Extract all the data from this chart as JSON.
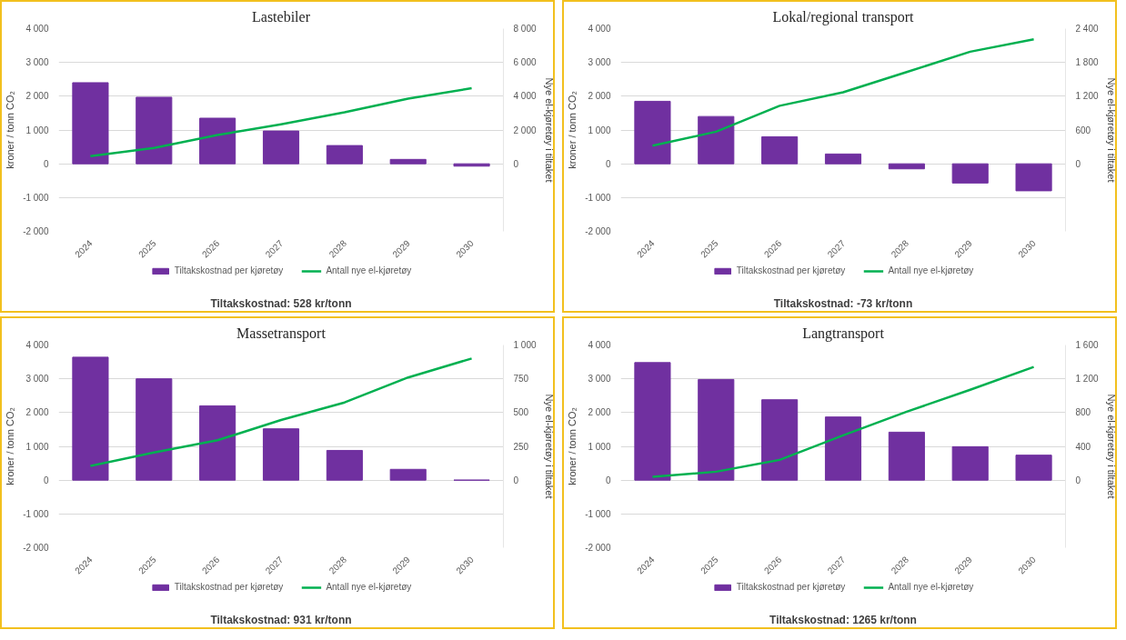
{
  "chart_data": [
    {
      "type": "bar",
      "title": "Lastebiler",
      "categories": [
        "2024",
        "2025",
        "2026",
        "2027",
        "2028",
        "2029",
        "2030"
      ],
      "ylabel": "kroner / tonn CO₂",
      "y2label": "Nye el-kjøretøy i tiltaket",
      "ylim": [
        -2000,
        4000
      ],
      "yticks": [
        {
          "value": -2000,
          "label": "-2 000"
        },
        {
          "value": -1000,
          "label": "-1 000"
        },
        0,
        {
          "value": 1000,
          "label": "1 000"
        },
        {
          "value": 2000,
          "label": "2 000"
        },
        {
          "value": 3000,
          "label": "3 000"
        },
        {
          "value": 4000,
          "label": "4 000"
        }
      ],
      "y2lim": [
        -4000,
        8000
      ],
      "y2ticks": [
        0,
        {
          "value": 2000,
          "label": "2 000"
        },
        {
          "value": 4000,
          "label": "4 000"
        },
        {
          "value": 6000,
          "label": "6 000"
        },
        {
          "value": 8000,
          "label": "8 000"
        }
      ],
      "grid": "y",
      "legend": "bottom",
      "annotations": [
        "Tiltakskostnad: 528 kr/tonn"
      ],
      "series": [
        {
          "name": "Tiltakskostnad per kjøretøy",
          "color": "#7030a0",
          "values": [
            2400,
            1970,
            1350,
            970,
            540,
            130,
            -70
          ]
        },
        {
          "name": "Antall nye el-kjøretøy",
          "type": "line",
          "axis": "y2",
          "color": "#00b050",
          "values": [
            450,
            940,
            1700,
            2340,
            3050,
            3860,
            4470
          ]
        }
      ]
    },
    {
      "type": "bar",
      "title": "Lokal/regional transport",
      "categories": [
        "2024",
        "2025",
        "2026",
        "2027",
        "2028",
        "2029",
        "2030"
      ],
      "ylabel": "kroner / tonn CO₂",
      "y2label": "Nye el-kjøretøy i tiltaket",
      "ylim": [
        -2000,
        4000
      ],
      "yticks": [
        {
          "value": -2000,
          "label": "-2 000"
        },
        {
          "value": -1000,
          "label": "-1 000"
        },
        0,
        {
          "value": 1000,
          "label": "1 000"
        },
        {
          "value": 2000,
          "label": "2 000"
        },
        {
          "value": 3000,
          "label": "3 000"
        },
        {
          "value": 4000,
          "label": "4 000"
        }
      ],
      "y2lim": [
        -1200,
        2400
      ],
      "y2ticks": [
        0,
        600,
        {
          "value": 1200,
          "label": "1 200"
        },
        {
          "value": 1800,
          "label": "1 800"
        },
        {
          "value": 2400,
          "label": "2 400"
        }
      ],
      "grid": "y",
      "legend": "bottom",
      "annotations": [
        "Tiltakskostnad: -73 kr/tonn"
      ],
      "series": [
        {
          "name": "Tiltakskostnad per kjøretøy",
          "color": "#7030a0",
          "values": [
            1850,
            1400,
            800,
            290,
            -150,
            -570,
            -800
          ]
        },
        {
          "name": "Antall nye el-kjøretøy",
          "type": "line",
          "axis": "y2",
          "color": "#00b050",
          "values": [
            320,
            570,
            1030,
            1270,
            1630,
            1990,
            2210
          ]
        }
      ]
    },
    {
      "type": "bar",
      "title": "Massetransport",
      "categories": [
        "2024",
        "2025",
        "2026",
        "2027",
        "2028",
        "2029",
        "2030"
      ],
      "ylabel": "kroner / tonn CO₂",
      "y2label": "Nye el-kjøretøy i tiltaket",
      "ylim": [
        -2000,
        4000
      ],
      "yticks": [
        {
          "value": -2000,
          "label": "-2 000"
        },
        {
          "value": -1000,
          "label": "-1 000"
        },
        0,
        {
          "value": 1000,
          "label": "1 000"
        },
        {
          "value": 2000,
          "label": "2 000"
        },
        {
          "value": 3000,
          "label": "3 000"
        },
        {
          "value": 4000,
          "label": "4 000"
        }
      ],
      "y2lim": [
        -500,
        1000
      ],
      "y2ticks": [
        0,
        250,
        500,
        750,
        {
          "value": 1000,
          "label": "1 000"
        }
      ],
      "grid": "y",
      "legend": "bottom",
      "annotations": [
        "Tiltakskostnad: 931 kr/tonn"
      ],
      "series": [
        {
          "name": "Tiltakskostnad per kjøretøy",
          "color": "#7030a0",
          "values": [
            3640,
            3000,
            2200,
            1520,
            880,
            320,
            0
          ]
        },
        {
          "name": "Antall nye el-kjøretøy",
          "type": "line",
          "axis": "y2",
          "color": "#00b050",
          "values": [
            105,
            205,
            295,
            445,
            575,
            760,
            900
          ]
        }
      ]
    },
    {
      "type": "bar",
      "title": "Langtransport",
      "categories": [
        "2024",
        "2025",
        "2026",
        "2027",
        "2028",
        "2029",
        "2030"
      ],
      "ylabel": "kroner / tonn CO₂",
      "y2label": "Nye el-kjøretøy i tiltaket",
      "ylim": [
        -2000,
        4000
      ],
      "yticks": [
        {
          "value": -2000,
          "label": "-2 000"
        },
        {
          "value": -1000,
          "label": "-1 000"
        },
        0,
        {
          "value": 1000,
          "label": "1 000"
        },
        {
          "value": 2000,
          "label": "2 000"
        },
        {
          "value": 3000,
          "label": "3 000"
        },
        {
          "value": 4000,
          "label": "4 000"
        }
      ],
      "y2lim": [
        -800,
        1600
      ],
      "y2ticks": [
        0,
        400,
        800,
        {
          "value": 1200,
          "label": "1 200"
        },
        {
          "value": 1600,
          "label": "1 600"
        }
      ],
      "grid": "y",
      "legend": "bottom",
      "annotations": [
        "Tiltakskostnad: 1265 kr/tonn"
      ],
      "series": [
        {
          "name": "Tiltakskostnad per kjøretøy",
          "color": "#7030a0",
          "values": [
            3480,
            2980,
            2380,
            1870,
            1420,
            990,
            740
          ]
        },
        {
          "name": "Antall nye el-kjøretøy",
          "type": "line",
          "axis": "y2",
          "color": "#00b050",
          "values": [
            40,
            100,
            240,
            530,
            810,
            1070,
            1340
          ]
        }
      ]
    }
  ]
}
